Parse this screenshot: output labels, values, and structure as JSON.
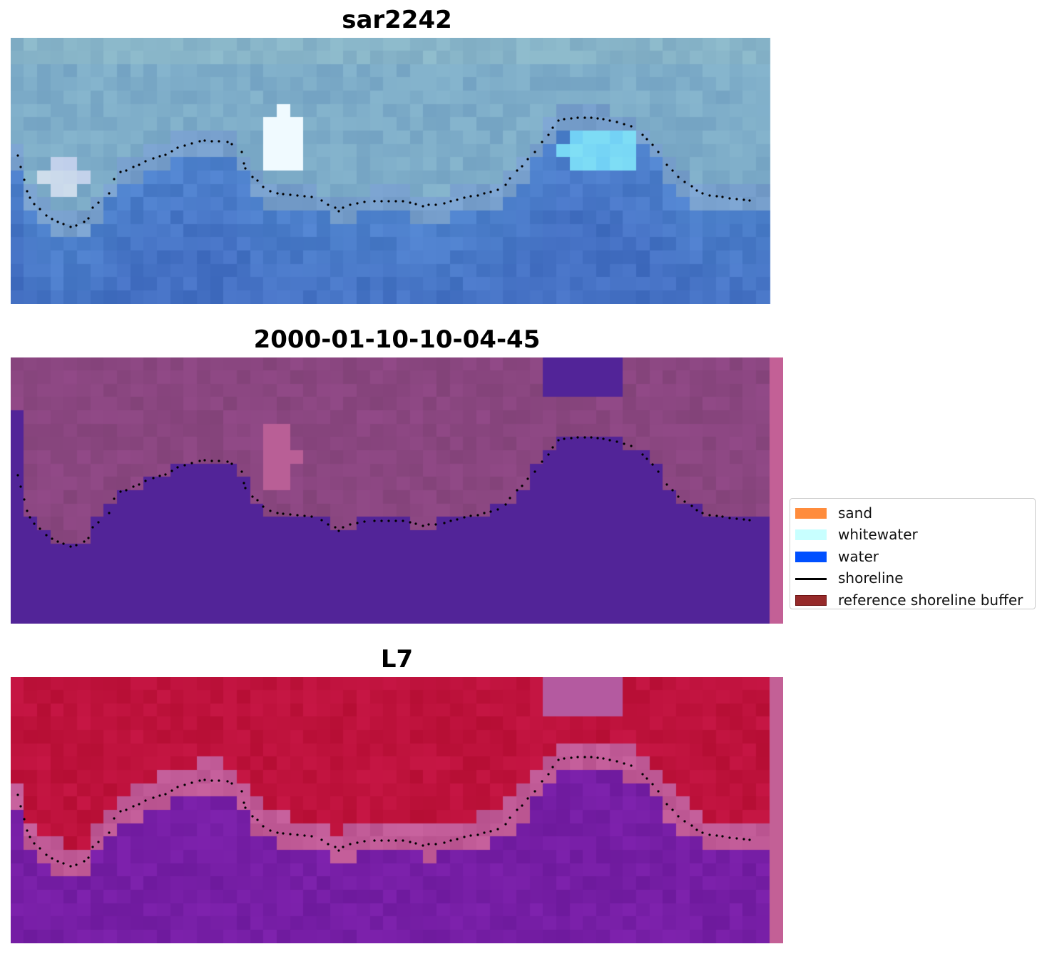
{
  "panels": [
    {
      "title": "sar2242",
      "kind": "rgb"
    },
    {
      "title": "2000-01-10-10-04-45",
      "kind": "classified"
    },
    {
      "title": "L7",
      "kind": "index"
    }
  ],
  "colors": {
    "sand": "#ff8c3c",
    "whitewater": "#c8ffff",
    "water": "#0050ff",
    "shoreline": "#000000",
    "reference_shoreline_buffer": "#962a2a",
    "buffer_strip": "#c36096"
  },
  "legend": {
    "items": [
      {
        "label": "sand",
        "kind": "patch",
        "color": "#ff8c3c",
        "edge": "#ff8c3c"
      },
      {
        "label": "whitewater",
        "kind": "patch",
        "color": "#c8ffff",
        "edge": "#c8ffff"
      },
      {
        "label": "water",
        "kind": "patch",
        "color": "#0050ff",
        "edge": "#0050ff"
      },
      {
        "label": "shoreline",
        "kind": "line",
        "color": "#000000"
      },
      {
        "label": "reference shoreline buffer",
        "kind": "patch",
        "color": "#962a2a",
        "edge": "#6e1212"
      }
    ]
  }
}
